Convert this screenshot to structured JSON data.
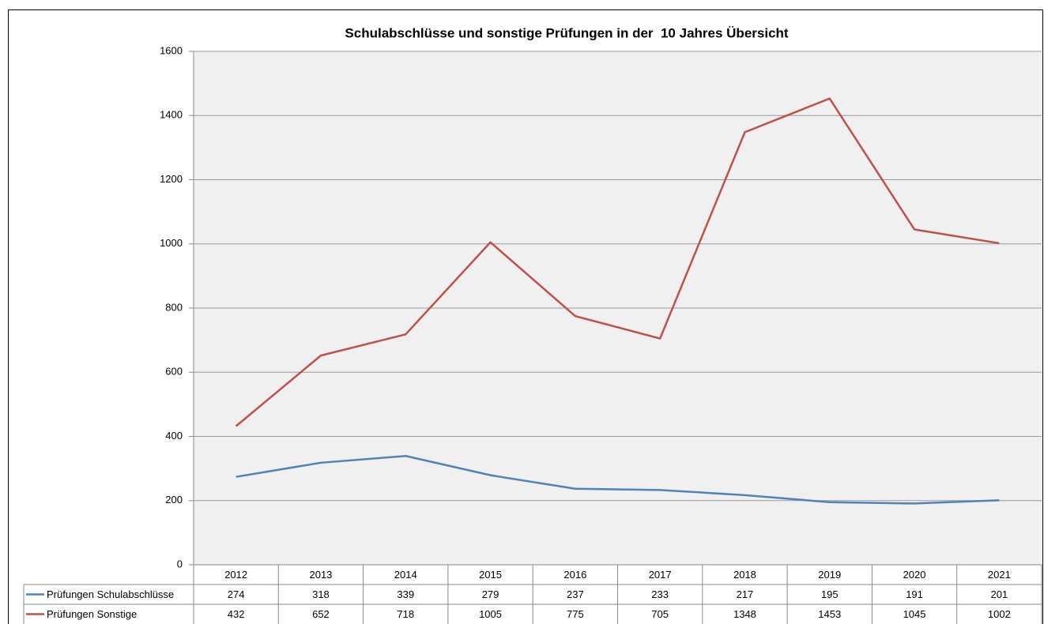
{
  "chart_data": {
    "type": "line",
    "title": "Schulabschlüsse und sonstige Prüfungen in der  10 Jahres Übersicht",
    "categories": [
      "2012",
      "2013",
      "2014",
      "2015",
      "2016",
      "2017",
      "2018",
      "2019",
      "2020",
      "2021"
    ],
    "series": [
      {
        "name": "Prüfungen Schulabschlüsse",
        "color": "#4f81bd",
        "values": [
          274,
          318,
          339,
          279,
          237,
          233,
          217,
          195,
          191,
          201
        ]
      },
      {
        "name": "Prüfungen Sonstige",
        "color": "#c0504d",
        "values": [
          432,
          652,
          718,
          1005,
          775,
          705,
          1348,
          1453,
          1045,
          1002
        ]
      }
    ],
    "ylim": [
      0,
      1600
    ],
    "yticks": [
      0,
      200,
      400,
      600,
      800,
      1000,
      1200,
      1400,
      1600
    ],
    "grid": true
  }
}
